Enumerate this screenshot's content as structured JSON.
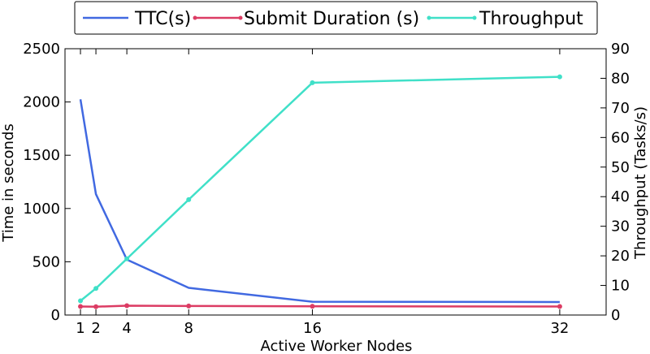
{
  "chart_data": {
    "type": "line",
    "xlabel": "Active Worker Nodes",
    "ylabel_left": "Time in seconds",
    "ylabel_right": "Throughput (Tasks/s)",
    "x": [
      1,
      2,
      4,
      8,
      16,
      32
    ],
    "xticks": [
      "1",
      "2",
      "4",
      "8",
      "16",
      "32"
    ],
    "xlim": [
      0,
      35
    ],
    "ylim_left": [
      0,
      2500
    ],
    "yticks_left": [
      0,
      500,
      1000,
      1500,
      2000,
      2500
    ],
    "ylim_right": [
      0,
      90
    ],
    "yticks_right": [
      0,
      10,
      20,
      30,
      40,
      50,
      60,
      70,
      80,
      90
    ],
    "grid": false,
    "legend_position": "top",
    "series": [
      {
        "name": "TTC(s)",
        "axis": "left",
        "color": "#4169e1",
        "marker": false,
        "values": [
          2025,
          1135,
          520,
          255,
          125,
          122
        ]
      },
      {
        "name": "Submit Duration (s)",
        "axis": "left",
        "color": "#dc3c64",
        "marker": true,
        "values": [
          80,
          78,
          88,
          85,
          82,
          80
        ]
      },
      {
        "name": "Throughput",
        "axis": "right",
        "color": "#40e0c8",
        "marker": true,
        "values": [
          4.8,
          9,
          19,
          39,
          78.5,
          80.5
        ]
      }
    ]
  }
}
